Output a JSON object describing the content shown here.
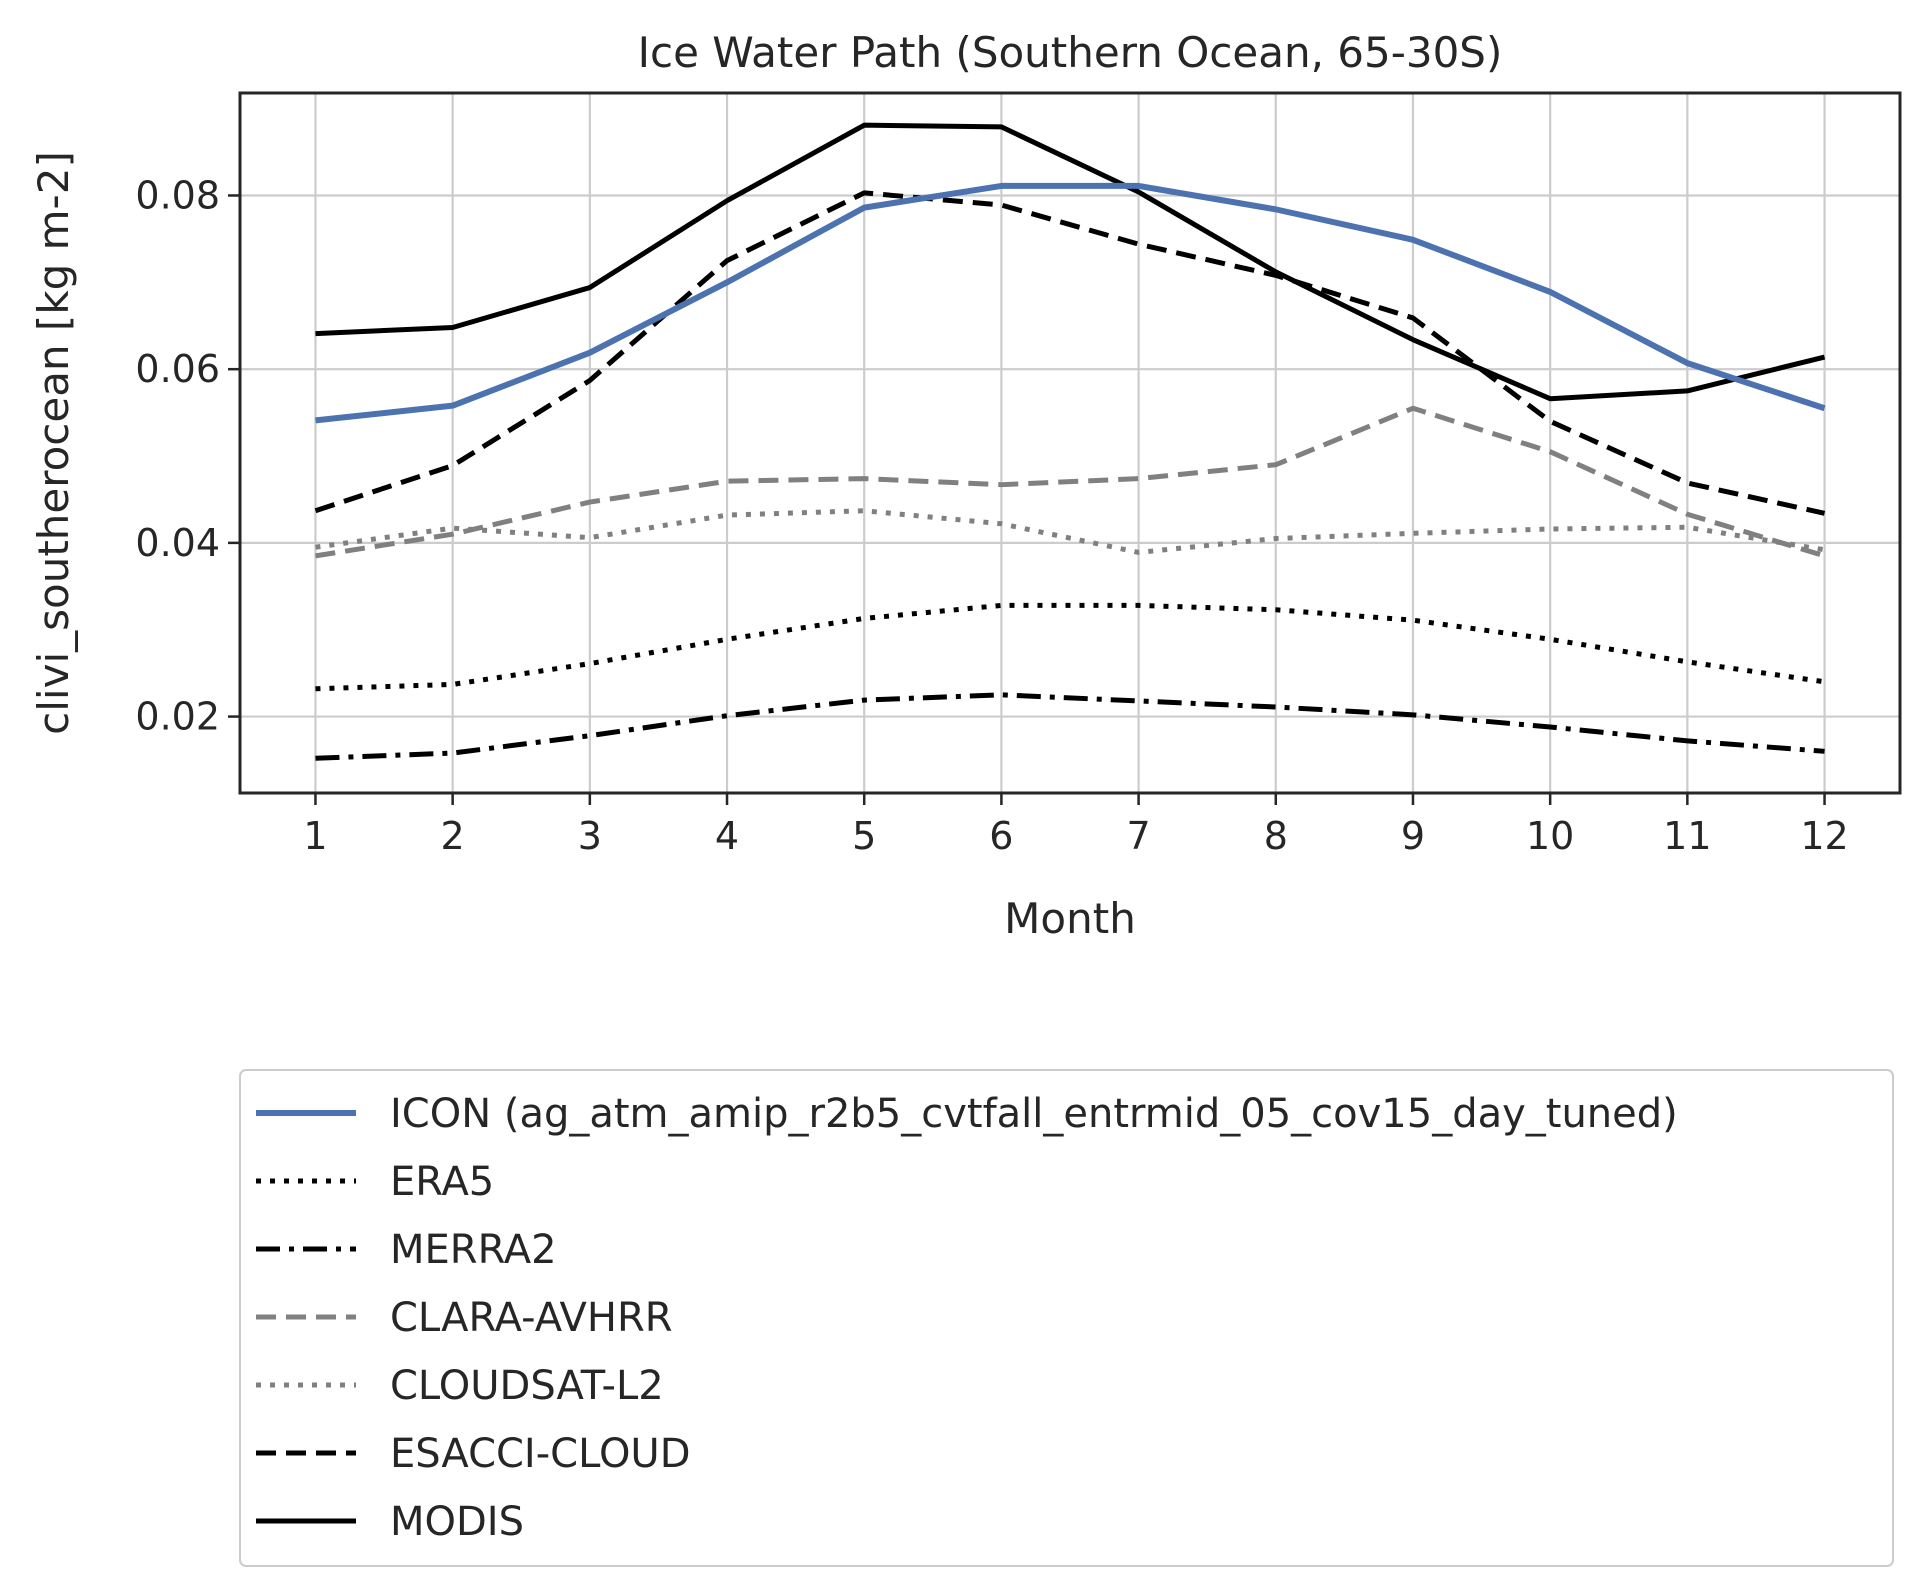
{
  "chart_data": {
    "type": "line",
    "title": "Ice Water Path (Southern Ocean, 65-30S)",
    "xlabel": "Month",
    "ylabel": "clivi_southerocean [kg m-2]",
    "x": [
      1,
      2,
      3,
      4,
      5,
      6,
      7,
      8,
      9,
      10,
      11,
      12
    ],
    "xlim": [
      0.45,
      12.55
    ],
    "ylim": [
      0.0112,
      0.0918
    ],
    "yticks": [
      0.02,
      0.04,
      0.06,
      0.08
    ],
    "ytick_labels": [
      "0.02",
      "0.04",
      "0.06",
      "0.08"
    ],
    "xtick_labels": [
      "1",
      "2",
      "3",
      "4",
      "5",
      "6",
      "7",
      "8",
      "9",
      "10",
      "11",
      "12"
    ],
    "grid": true,
    "legend_position": "below",
    "series": [
      {
        "name": "ICON (ag_atm_amip_r2b5_cvtfall_entrmid_05_cov15_day_tuned)",
        "color": "#4c72b0",
        "style": "solid",
        "values": [
          0.0541,
          0.0558,
          0.0619,
          0.07,
          0.0786,
          0.0811,
          0.0811,
          0.0784,
          0.0749,
          0.0689,
          0.0607,
          0.0555
        ]
      },
      {
        "name": "ERA5",
        "color": "#000000",
        "style": "dotted",
        "values": [
          0.0232,
          0.0237,
          0.0261,
          0.0289,
          0.0313,
          0.0328,
          0.0328,
          0.0323,
          0.0311,
          0.0289,
          0.0263,
          0.024
        ]
      },
      {
        "name": "MERRA2",
        "color": "#000000",
        "style": "dashdot",
        "values": [
          0.0152,
          0.0158,
          0.0178,
          0.0201,
          0.0219,
          0.0225,
          0.0218,
          0.0211,
          0.0202,
          0.0188,
          0.0172,
          0.016
        ]
      },
      {
        "name": "CLARA-AVHRR",
        "color": "#808080",
        "style": "dashed",
        "values": [
          0.0385,
          0.041,
          0.0447,
          0.0471,
          0.0474,
          0.0467,
          0.0474,
          0.049,
          0.0555,
          0.0505,
          0.0433,
          0.0385
        ]
      },
      {
        "name": "CLOUDSAT-L2",
        "color": "#808080",
        "style": "dotted",
        "values": [
          0.0395,
          0.0417,
          0.0406,
          0.0432,
          0.0437,
          0.0422,
          0.0389,
          0.0405,
          0.0411,
          0.0416,
          0.0418,
          0.0392
        ]
      },
      {
        "name": "ESACCI-CLOUD",
        "color": "#000000",
        "style": "dashed",
        "values": [
          0.0437,
          0.0489,
          0.0587,
          0.0725,
          0.0803,
          0.0789,
          0.0744,
          0.0708,
          0.0659,
          0.054,
          0.0469,
          0.0434
        ]
      },
      {
        "name": "MODIS",
        "color": "#000000",
        "style": "solid",
        "values": [
          0.0641,
          0.0648,
          0.0694,
          0.0794,
          0.0881,
          0.0879,
          0.0804,
          0.0712,
          0.0634,
          0.0566,
          0.0575,
          0.0614
        ]
      }
    ]
  }
}
